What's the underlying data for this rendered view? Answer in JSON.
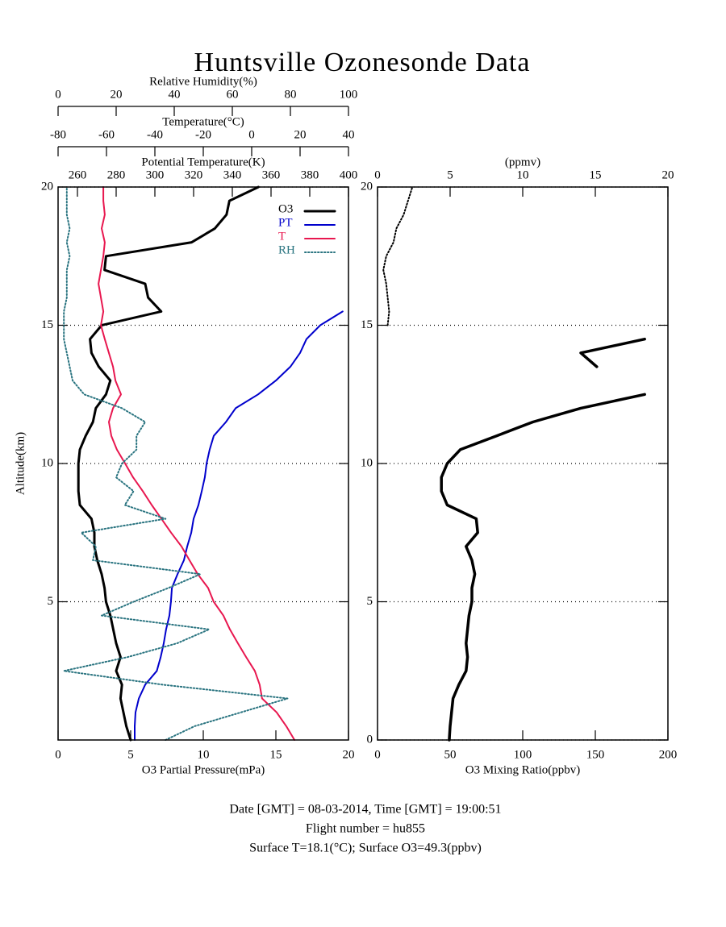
{
  "title": "Huntsville Ozonesonde Data",
  "footer": [
    "Date [GMT] = 08-03-2014,  Time [GMT] = 19:00:51",
    "Flight number = hu855",
    "Surface T=18.1(°C); Surface O3=49.3(ppbv)"
  ],
  "chart_data": [
    {
      "type": "line",
      "y_label": "Altitude(km)",
      "y": [
        0,
        0.5,
        1,
        1.5,
        2,
        2.5,
        3,
        3.5,
        4,
        4.5,
        5,
        5.5,
        6,
        6.5,
        7,
        7.5,
        8,
        8.5,
        9,
        9.5,
        10,
        10.5,
        11,
        11.5,
        12,
        12.5,
        13,
        13.5,
        14,
        14.5,
        15,
        15.5,
        16,
        16.5,
        17,
        17.5,
        18,
        18.5,
        19,
        19.5,
        20
      ],
      "ylim": [
        0,
        20
      ],
      "yticks": [
        5,
        10,
        15,
        20
      ],
      "grid": true,
      "x_label": "O3 Partial Pressure(mPa)",
      "xlim": [
        0,
        20
      ],
      "xticks": [
        0,
        5,
        10,
        15,
        20
      ],
      "x2_label": "Potential Temperature(K)",
      "x2lim": [
        250,
        400
      ],
      "x2ticks": [
        260,
        280,
        300,
        320,
        340,
        360,
        380,
        400
      ],
      "x3_label": "Temperature(°C)",
      "x3lim": [
        -80,
        40
      ],
      "x3ticks": [
        -80,
        -60,
        -40,
        -20,
        0,
        20,
        40
      ],
      "x4_label": "Relative Humidity(%)",
      "x4lim": [
        0,
        100
      ],
      "x4ticks": [
        0,
        20,
        40,
        60,
        80,
        100
      ],
      "legend": "upper right",
      "series": [
        {
          "name": "O3",
          "color": "#000000",
          "axis": "x",
          "width": 3,
          "dash": "solid",
          "values": [
            5.0,
            4.7,
            4.5,
            4.3,
            4.4,
            4.0,
            4.3,
            4.0,
            3.8,
            3.6,
            3.3,
            3.2,
            3.0,
            2.7,
            2.5,
            2.5,
            2.3,
            1.5,
            1.4,
            1.4,
            1.4,
            1.5,
            1.9,
            2.4,
            2.6,
            3.3,
            3.6,
            2.8,
            2.3,
            2.2,
            3.0,
            7.1,
            6.2,
            6.0,
            3.2,
            3.3,
            9.2,
            10.8,
            11.6,
            11.8,
            13.8
          ]
        },
        {
          "name": "PT",
          "color": "#0000cc",
          "axis": "x2",
          "width": 2,
          "dash": "solid",
          "values": [
            289.6,
            289.6,
            290,
            291.7,
            295,
            301,
            303,
            304.6,
            305.8,
            307.5,
            308.3,
            308.8,
            311.7,
            315,
            316.7,
            318.8,
            320,
            322.5,
            324.2,
            325.8,
            326.7,
            328.3,
            330.4,
            336.7,
            341.7,
            353.3,
            362.5,
            370,
            375,
            378.3,
            385.4,
            397,
            null,
            null,
            null,
            null,
            null,
            null,
            null,
            null,
            null
          ]
        },
        {
          "name": "T",
          "color": "#e8174f",
          "axis": "x3",
          "width": 2,
          "dash": "solid",
          "values": [
            17.7,
            14.3,
            10.3,
            4.3,
            3.3,
            1.3,
            -2.3,
            -5.7,
            -9,
            -11.7,
            -15.7,
            -18,
            -22.3,
            -25.7,
            -29,
            -33.3,
            -37.3,
            -41.3,
            -45,
            -49,
            -52.3,
            -55.7,
            -58,
            -59,
            -57.3,
            -54,
            -56.3,
            -57.3,
            -59,
            -60.7,
            -62.3,
            -61.3,
            -62.3,
            -63.3,
            -62.3,
            -61.3,
            -60.7,
            -62,
            -60.7,
            -61.3,
            -61.3
          ]
        },
        {
          "name": "RH",
          "color": "#2a7480",
          "axis": "x4",
          "width": 2,
          "dash": "dotted",
          "values": [
            37,
            47,
            63,
            79,
            36,
            2,
            24,
            41,
            52,
            15,
            26,
            38,
            49,
            12,
            13,
            8,
            37,
            23,
            26,
            20,
            22,
            27,
            27,
            30,
            22,
            9,
            5,
            4,
            3,
            2,
            2,
            2,
            3,
            3,
            3,
            4,
            3,
            4,
            3,
            3,
            3
          ]
        }
      ]
    },
    {
      "type": "line",
      "y": [
        0,
        0.5,
        1,
        1.5,
        2,
        2.5,
        3,
        3.5,
        4,
        4.5,
        5,
        5.5,
        6,
        6.5,
        7,
        7.5,
        8,
        8.5,
        9,
        9.5,
        10,
        10.5,
        11,
        11.5,
        12,
        12.5,
        13,
        13.5,
        14,
        14.5,
        15,
        15.5,
        16,
        16.5,
        17,
        17.5,
        18,
        18.5,
        19,
        19.5,
        20
      ],
      "ylim": [
        0,
        20
      ],
      "yticks": [
        0,
        5,
        10,
        15,
        20
      ],
      "grid": true,
      "x_label": "O3 Mixing Ratio(ppbv)",
      "xlim": [
        0,
        200
      ],
      "xticks": [
        0,
        50,
        100,
        150,
        200
      ],
      "x2_label": "(ppmv)",
      "x2lim": [
        0,
        20
      ],
      "x2ticks": [
        0,
        5,
        10,
        15,
        20
      ],
      "series": [
        {
          "color": "#000000",
          "axis": "x",
          "width": 3.5,
          "dash": "solid",
          "values": [
            49.4,
            50,
            51,
            52,
            56,
            61,
            62,
            61,
            62,
            63,
            65,
            65,
            67,
            65,
            61,
            69,
            68,
            48,
            44,
            44,
            48,
            57,
            82,
            107,
            140,
            184,
            null,
            151,
            140,
            184,
            null,
            null,
            null,
            null,
            null,
            null,
            null,
            null,
            null,
            null,
            null
          ]
        },
        {
          "color": "#000000",
          "axis": "x2",
          "width": 2,
          "dash": "dotted",
          "values": [
            null,
            null,
            null,
            null,
            null,
            null,
            null,
            null,
            null,
            null,
            null,
            null,
            null,
            null,
            null,
            null,
            null,
            null,
            null,
            null,
            null,
            null,
            null,
            null,
            null,
            null,
            null,
            null,
            null,
            null,
            0.7,
            0.8,
            0.7,
            0.6,
            0.4,
            0.6,
            1.1,
            1.3,
            1.8,
            2.1,
            2.4
          ]
        }
      ]
    }
  ]
}
